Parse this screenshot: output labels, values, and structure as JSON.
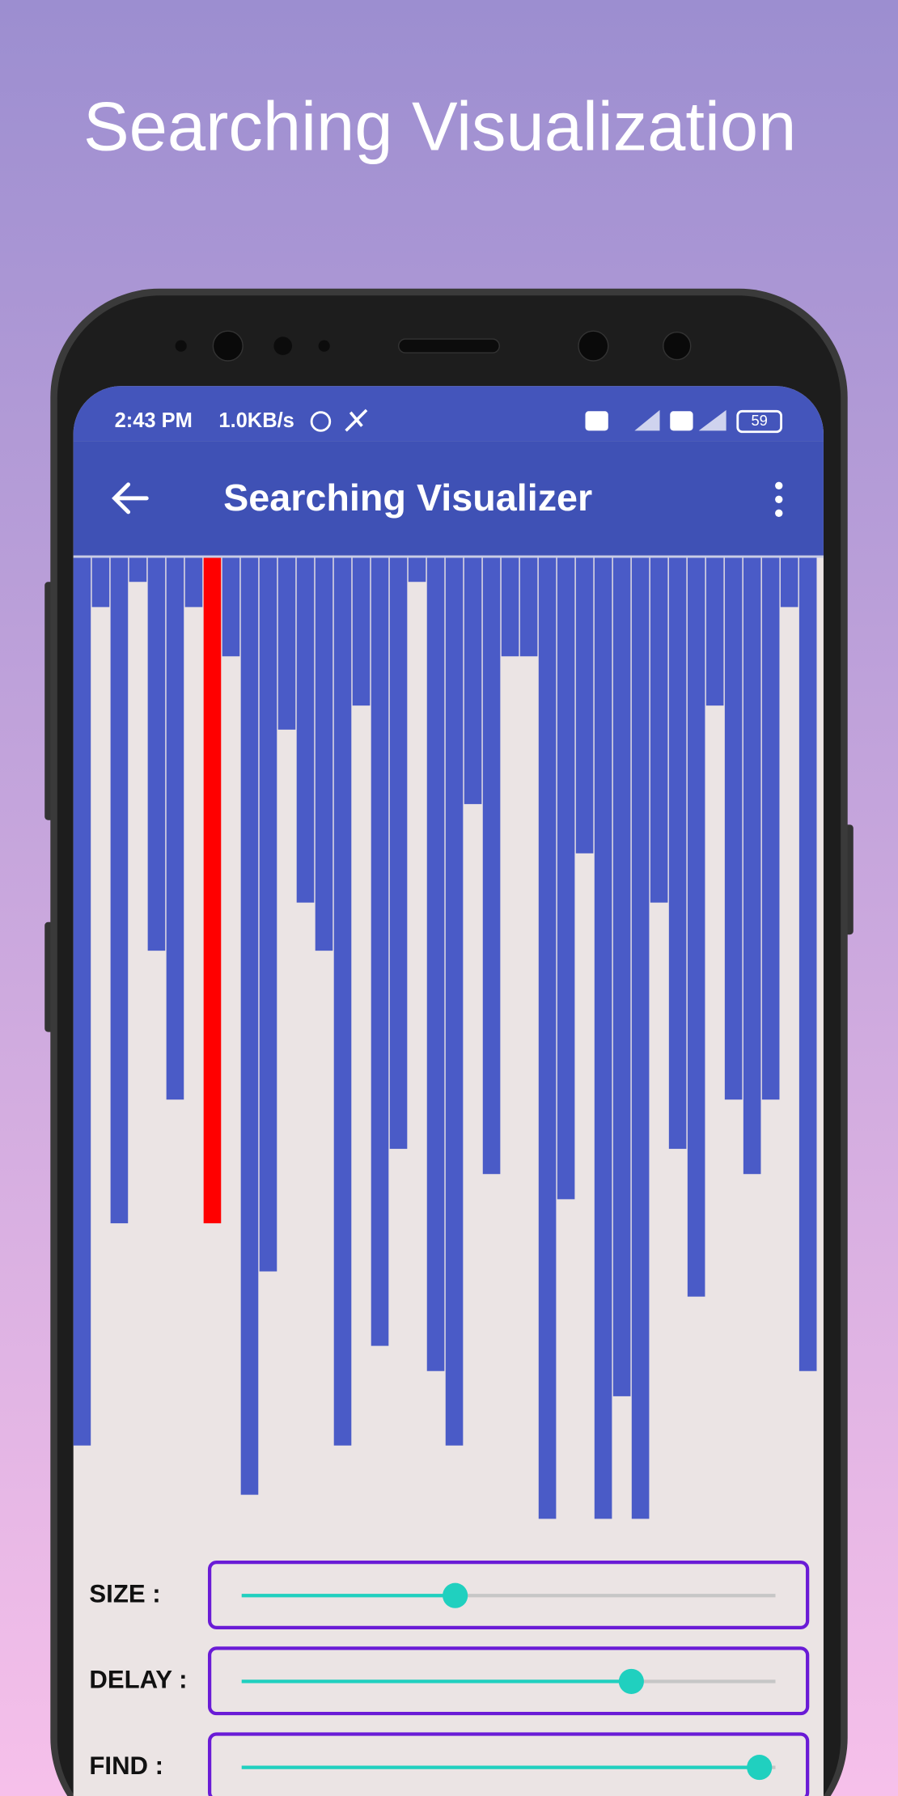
{
  "header": {
    "title": "Searching Visualization"
  },
  "status_bar": {
    "time": "2:43 PM",
    "speed": "1.0KB/s",
    "battery": "59"
  },
  "toolbar": {
    "title": "Searching Visualizer"
  },
  "bars": {
    "values": [
      775,
      43,
      581,
      21,
      343,
      473,
      43,
      581,
      86,
      818,
      623,
      150,
      301,
      343,
      775,
      129,
      688,
      516,
      21,
      710,
      775,
      215,
      538,
      86,
      86,
      839,
      560,
      258,
      839,
      732,
      839,
      301,
      516,
      645,
      129,
      473,
      538,
      473,
      43,
      710
    ],
    "color": "#4a5bc7",
    "highlight_index": 7,
    "highlight_color": "#ff0000"
  },
  "controls": {
    "range": [
      0,
      100
    ],
    "items": [
      {
        "label": "SIZE :",
        "value": 40
      },
      {
        "label": "DELAY :",
        "value": 73
      },
      {
        "label": "FIND :",
        "value": 97
      }
    ]
  }
}
